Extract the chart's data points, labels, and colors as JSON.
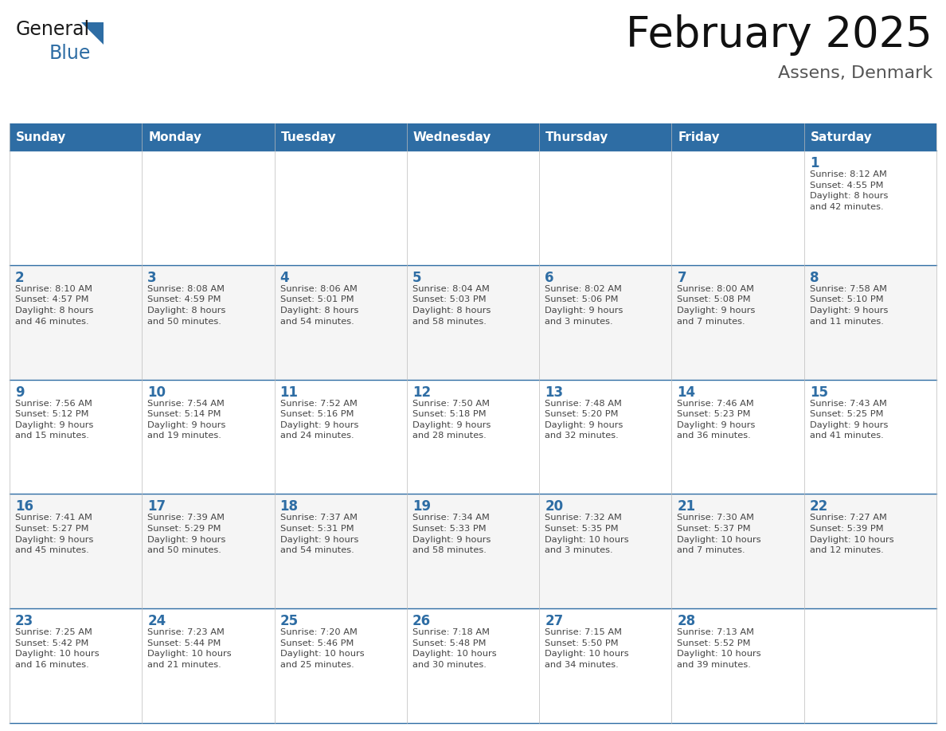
{
  "title": "February 2025",
  "subtitle": "Assens, Denmark",
  "header_bg": "#2E6DA4",
  "header_text_color": "#FFFFFF",
  "cell_border_color": "#2E6DA4",
  "day_number_color": "#2E6DA4",
  "info_text_color": "#444444",
  "bg_color": "#FFFFFF",
  "days_of_week": [
    "Sunday",
    "Monday",
    "Tuesday",
    "Wednesday",
    "Thursday",
    "Friday",
    "Saturday"
  ],
  "logo_general_color": "#1a1a1a",
  "logo_blue_color": "#2E6DA4",
  "calendar_data": [
    [
      {
        "day": "",
        "info": ""
      },
      {
        "day": "",
        "info": ""
      },
      {
        "day": "",
        "info": ""
      },
      {
        "day": "",
        "info": ""
      },
      {
        "day": "",
        "info": ""
      },
      {
        "day": "",
        "info": ""
      },
      {
        "day": "1",
        "info": "Sunrise: 8:12 AM\nSunset: 4:55 PM\nDaylight: 8 hours\nand 42 minutes."
      }
    ],
    [
      {
        "day": "2",
        "info": "Sunrise: 8:10 AM\nSunset: 4:57 PM\nDaylight: 8 hours\nand 46 minutes."
      },
      {
        "day": "3",
        "info": "Sunrise: 8:08 AM\nSunset: 4:59 PM\nDaylight: 8 hours\nand 50 minutes."
      },
      {
        "day": "4",
        "info": "Sunrise: 8:06 AM\nSunset: 5:01 PM\nDaylight: 8 hours\nand 54 minutes."
      },
      {
        "day": "5",
        "info": "Sunrise: 8:04 AM\nSunset: 5:03 PM\nDaylight: 8 hours\nand 58 minutes."
      },
      {
        "day": "6",
        "info": "Sunrise: 8:02 AM\nSunset: 5:06 PM\nDaylight: 9 hours\nand 3 minutes."
      },
      {
        "day": "7",
        "info": "Sunrise: 8:00 AM\nSunset: 5:08 PM\nDaylight: 9 hours\nand 7 minutes."
      },
      {
        "day": "8",
        "info": "Sunrise: 7:58 AM\nSunset: 5:10 PM\nDaylight: 9 hours\nand 11 minutes."
      }
    ],
    [
      {
        "day": "9",
        "info": "Sunrise: 7:56 AM\nSunset: 5:12 PM\nDaylight: 9 hours\nand 15 minutes."
      },
      {
        "day": "10",
        "info": "Sunrise: 7:54 AM\nSunset: 5:14 PM\nDaylight: 9 hours\nand 19 minutes."
      },
      {
        "day": "11",
        "info": "Sunrise: 7:52 AM\nSunset: 5:16 PM\nDaylight: 9 hours\nand 24 minutes."
      },
      {
        "day": "12",
        "info": "Sunrise: 7:50 AM\nSunset: 5:18 PM\nDaylight: 9 hours\nand 28 minutes."
      },
      {
        "day": "13",
        "info": "Sunrise: 7:48 AM\nSunset: 5:20 PM\nDaylight: 9 hours\nand 32 minutes."
      },
      {
        "day": "14",
        "info": "Sunrise: 7:46 AM\nSunset: 5:23 PM\nDaylight: 9 hours\nand 36 minutes."
      },
      {
        "day": "15",
        "info": "Sunrise: 7:43 AM\nSunset: 5:25 PM\nDaylight: 9 hours\nand 41 minutes."
      }
    ],
    [
      {
        "day": "16",
        "info": "Sunrise: 7:41 AM\nSunset: 5:27 PM\nDaylight: 9 hours\nand 45 minutes."
      },
      {
        "day": "17",
        "info": "Sunrise: 7:39 AM\nSunset: 5:29 PM\nDaylight: 9 hours\nand 50 minutes."
      },
      {
        "day": "18",
        "info": "Sunrise: 7:37 AM\nSunset: 5:31 PM\nDaylight: 9 hours\nand 54 minutes."
      },
      {
        "day": "19",
        "info": "Sunrise: 7:34 AM\nSunset: 5:33 PM\nDaylight: 9 hours\nand 58 minutes."
      },
      {
        "day": "20",
        "info": "Sunrise: 7:32 AM\nSunset: 5:35 PM\nDaylight: 10 hours\nand 3 minutes."
      },
      {
        "day": "21",
        "info": "Sunrise: 7:30 AM\nSunset: 5:37 PM\nDaylight: 10 hours\nand 7 minutes."
      },
      {
        "day": "22",
        "info": "Sunrise: 7:27 AM\nSunset: 5:39 PM\nDaylight: 10 hours\nand 12 minutes."
      }
    ],
    [
      {
        "day": "23",
        "info": "Sunrise: 7:25 AM\nSunset: 5:42 PM\nDaylight: 10 hours\nand 16 minutes."
      },
      {
        "day": "24",
        "info": "Sunrise: 7:23 AM\nSunset: 5:44 PM\nDaylight: 10 hours\nand 21 minutes."
      },
      {
        "day": "25",
        "info": "Sunrise: 7:20 AM\nSunset: 5:46 PM\nDaylight: 10 hours\nand 25 minutes."
      },
      {
        "day": "26",
        "info": "Sunrise: 7:18 AM\nSunset: 5:48 PM\nDaylight: 10 hours\nand 30 minutes."
      },
      {
        "day": "27",
        "info": "Sunrise: 7:15 AM\nSunset: 5:50 PM\nDaylight: 10 hours\nand 34 minutes."
      },
      {
        "day": "28",
        "info": "Sunrise: 7:13 AM\nSunset: 5:52 PM\nDaylight: 10 hours\nand 39 minutes."
      },
      {
        "day": "",
        "info": ""
      }
    ]
  ]
}
